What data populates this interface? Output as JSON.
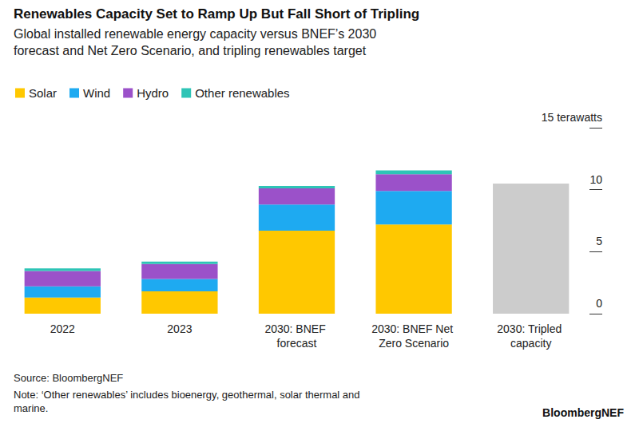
{
  "chart_data": {
    "type": "bar",
    "title": "Renewables Capacity Set to Ramp Up But Fall Short of Tripling",
    "subtitle": "Global installed renewable energy capacity versus BNEF’s 2030 forecast and Net Zero Scenario, and tripling renewables target",
    "categories": [
      "2022",
      "2023",
      "2030: BNEF forecast",
      "2030: BNEF Net Zero Scenario",
      "2030: Tripled capacity"
    ],
    "series": [
      {
        "name": "Solar",
        "color": "#ffc800",
        "values": [
          1.3,
          1.8,
          6.7,
          7.2,
          null
        ]
      },
      {
        "name": "Wind",
        "color": "#1eaaf1",
        "values": [
          0.9,
          1.0,
          2.1,
          2.7,
          null
        ]
      },
      {
        "name": "Hydro",
        "color": "#9b51c9",
        "values": [
          1.25,
          1.2,
          1.3,
          1.35,
          null
        ]
      },
      {
        "name": "Other renewables",
        "color": "#2ec4b6",
        "values": [
          0.2,
          0.2,
          0.2,
          0.3,
          null
        ]
      }
    ],
    "target": {
      "color": "#cccccc",
      "values": [
        null,
        null,
        null,
        null,
        10.5
      ]
    },
    "stacked": true,
    "ylim": [
      0,
      15
    ],
    "yticks": [
      0,
      5,
      10,
      {
        "value": 15,
        "label": "15 terawatts"
      }
    ],
    "grid": false,
    "legend": "top-left",
    "source": "Source: BloombergNEF",
    "note": "Note: ‘Other renewables’ includes bioenergy, geothermal, solar thermal and marine.",
    "brand": "BloombergNEF"
  }
}
